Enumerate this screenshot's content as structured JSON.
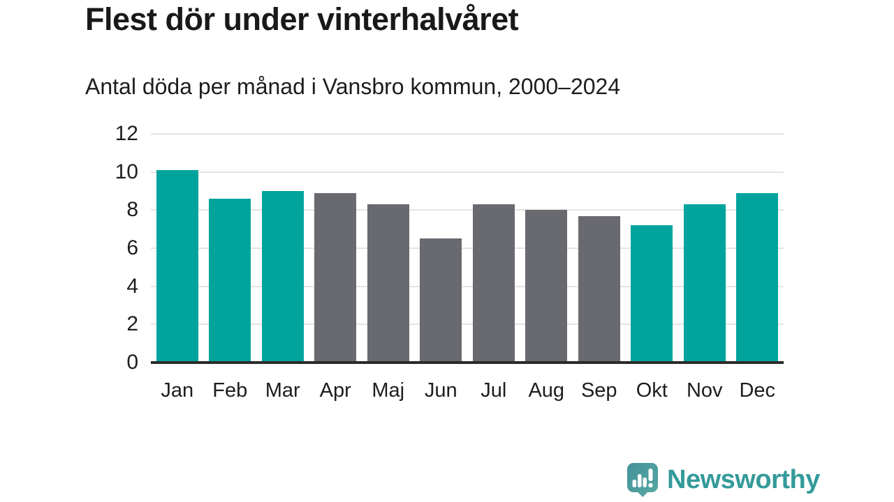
{
  "header": {
    "title": "Flest dör under vinterhalvåret",
    "subtitle": "Antal döda per månad i Vansbro kommun, 2000–2024"
  },
  "chart_data": {
    "type": "bar",
    "title": "Flest dör under vinterhalvåret",
    "subtitle": "Antal döda per månad i Vansbro kommun, 2000–2024",
    "categories": [
      "Jan",
      "Feb",
      "Mar",
      "Apr",
      "Maj",
      "Jun",
      "Jul",
      "Aug",
      "Sep",
      "Okt",
      "Nov",
      "Dec"
    ],
    "values": [
      10.1,
      8.6,
      9.0,
      8.9,
      8.3,
      6.5,
      8.3,
      8.0,
      7.7,
      7.2,
      8.3,
      8.9
    ],
    "highlighted": [
      true,
      true,
      true,
      false,
      false,
      false,
      false,
      false,
      false,
      true,
      true,
      true
    ],
    "highlight_color": "#00a49c",
    "base_color": "#696970",
    "ylim": [
      0,
      12
    ],
    "yticks": [
      0,
      2,
      4,
      6,
      8,
      10,
      12
    ],
    "grid": "horizontal",
    "gridline_color": "#e4e4e4",
    "axis_line_color": "#2b2b2b",
    "xlabel": "",
    "ylabel": "",
    "legend": "none"
  },
  "branding": {
    "logo_text": "Newsworthy",
    "logo_icon": "newsworthy-speech-bubble-bar-chart-icon",
    "logo_color": "#349a9a",
    "logo_bubble_color_start": "#45929a",
    "logo_bubble_color_end": "#55a8a4"
  }
}
